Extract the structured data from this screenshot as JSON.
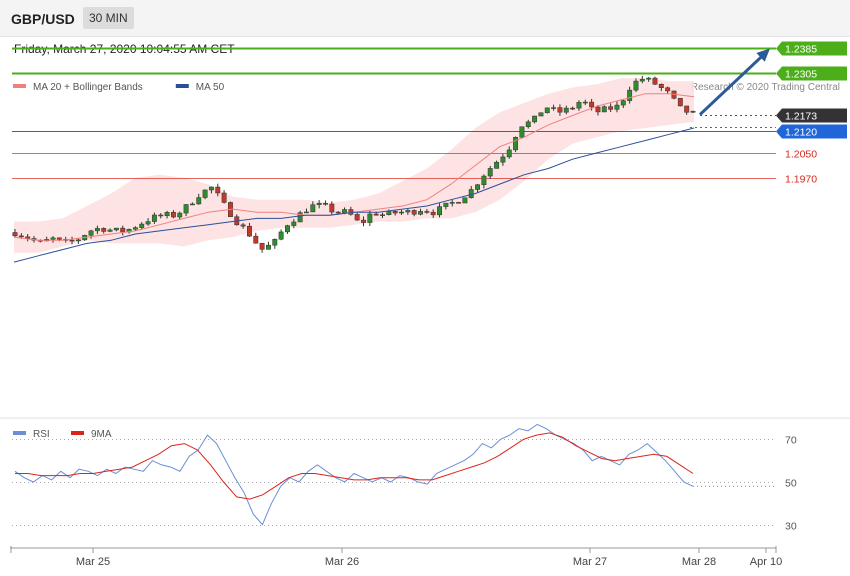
{
  "header": {
    "pair": "GBP/USD",
    "timeframe": "30 MIN",
    "datetime": "Friday, March 27, 2020 10:04:55 AM CET"
  },
  "credit": "Research © 2020 Trading Central",
  "colors": {
    "ma20": "#f08080",
    "ma50": "#2b4f9a",
    "resistance": "#4caf1a",
    "current": "#333333",
    "support_blue": "#2166d8",
    "support_red": "#d9261c",
    "band_fill": "#fde0e0",
    "up": "#2e8b2e",
    "down": "#c0392b"
  },
  "chart_data": [
    {
      "type": "candlestick",
      "legend": [
        {
          "name": "MA 20 + Bollinger Bands",
          "color": "#f08080"
        },
        {
          "name": "MA 50",
          "color": "#2b4f9a"
        }
      ],
      "ylim": [
        1.12,
        1.2425
      ],
      "levels": [
        {
          "value": 1.2385,
          "label": "1.2385",
          "kind": "resistance"
        },
        {
          "value": 1.2305,
          "label": "1.2305",
          "kind": "resistance"
        },
        {
          "value": 1.2173,
          "label": "1.2173",
          "kind": "current"
        },
        {
          "value": 1.212,
          "label": "1.2120",
          "kind": "support_blue"
        },
        {
          "value": 1.205,
          "label": "1.2050",
          "kind": "support_red"
        },
        {
          "value": 1.197,
          "label": "1.1970",
          "kind": "support_red"
        }
      ],
      "forecast_arrow": {
        "from": 1.2173,
        "to": 1.2385
      },
      "x_ticks": [
        "Mar 25",
        "Mar 26",
        "Mar 27",
        "Mar 28",
        "Apr 10"
      ],
      "keypoints": [
        1.1795,
        1.178,
        1.176,
        1.1775,
        1.176,
        1.177,
        1.18,
        1.181,
        1.18,
        1.18,
        1.182,
        1.184,
        1.185,
        1.185,
        1.188,
        1.192,
        1.194,
        1.188,
        1.183,
        1.179,
        1.174,
        1.176,
        1.182,
        1.185,
        1.188,
        1.188,
        1.186,
        1.186,
        1.182,
        1.186,
        1.185,
        1.186,
        1.186,
        1.187,
        1.186,
        1.188,
        1.19,
        1.193,
        1.198,
        1.202,
        1.206,
        1.214,
        1.215,
        1.22,
        1.218,
        1.219,
        1.222,
        1.218,
        1.219,
        1.22,
        1.227,
        1.229,
        1.227,
        1.224,
        1.219,
        1.2175
      ],
      "ma20": [
        1.178,
        1.177,
        1.177,
        1.178,
        1.179,
        1.18,
        1.182,
        1.184,
        1.186,
        1.187,
        1.186,
        1.186,
        1.185,
        1.185,
        1.186,
        1.187,
        1.188,
        1.19,
        1.195,
        1.201,
        1.207,
        1.21,
        1.214,
        1.217,
        1.22,
        1.222,
        1.224,
        1.224,
        1.223
      ],
      "bb_upper": [
        1.183,
        1.183,
        1.184,
        1.188,
        1.192,
        1.197,
        1.198,
        1.197,
        1.195,
        1.191,
        1.19,
        1.19,
        1.19,
        1.189,
        1.19,
        1.192,
        1.196,
        1.2,
        1.206,
        1.213,
        1.218,
        1.221,
        1.224,
        1.226,
        1.227,
        1.229,
        1.229,
        1.228,
        1.228
      ],
      "bb_lower": [
        1.173,
        1.173,
        1.175,
        1.177,
        1.176,
        1.176,
        1.176,
        1.175,
        1.177,
        1.178,
        1.18,
        1.181,
        1.181,
        1.181,
        1.182,
        1.183,
        1.183,
        1.184,
        1.184,
        1.186,
        1.19,
        1.196,
        1.203,
        1.208,
        1.21,
        1.212,
        1.213,
        1.214,
        1.215
      ],
      "ma50": [
        1.17,
        1.172,
        1.174,
        1.176,
        1.177,
        1.179,
        1.18,
        1.181,
        1.182,
        1.183,
        1.184,
        1.184,
        1.185,
        1.185,
        1.186,
        1.186,
        1.187,
        1.188,
        1.19,
        1.192,
        1.195,
        1.198,
        1.2,
        1.203,
        1.205,
        1.207,
        1.209,
        1.211,
        1.213
      ]
    },
    {
      "type": "line",
      "legend": [
        {
          "name": "RSI",
          "color": "#6b8ed6"
        },
        {
          "name": "9MA",
          "color": "#d9261c"
        }
      ],
      "ylim": [
        20,
        80
      ],
      "gridlines": [
        70,
        50,
        30
      ],
      "series": [
        {
          "name": "RSI",
          "values": [
            55,
            52,
            50,
            53,
            51,
            55,
            52,
            56,
            55,
            53,
            56,
            54,
            57,
            56,
            55,
            60,
            58,
            57,
            55,
            62,
            65,
            72,
            68,
            60,
            52,
            45,
            35,
            30,
            40,
            48,
            52,
            50,
            55,
            58,
            55,
            52,
            50,
            54,
            52,
            50,
            52,
            50,
            53,
            52,
            50,
            49,
            54,
            56,
            58,
            60,
            63,
            68,
            66,
            70,
            72,
            75,
            74,
            77,
            75,
            72,
            70,
            68,
            65,
            60,
            62,
            60,
            58,
            63,
            65,
            68,
            64,
            60,
            55,
            50,
            48
          ]
        },
        {
          "name": "9MA",
          "values": [
            54,
            54,
            53,
            53,
            53,
            54,
            54,
            55,
            56,
            57,
            60,
            63,
            67,
            68,
            65,
            58,
            50,
            43,
            42,
            44,
            48,
            52,
            54,
            54,
            53,
            52,
            51,
            51,
            52,
            52,
            52,
            51,
            51,
            53,
            55,
            57,
            59,
            62,
            66,
            70,
            72,
            73,
            71,
            67,
            64,
            61,
            60,
            61,
            62,
            63,
            62,
            58,
            54
          ]
        }
      ]
    }
  ]
}
